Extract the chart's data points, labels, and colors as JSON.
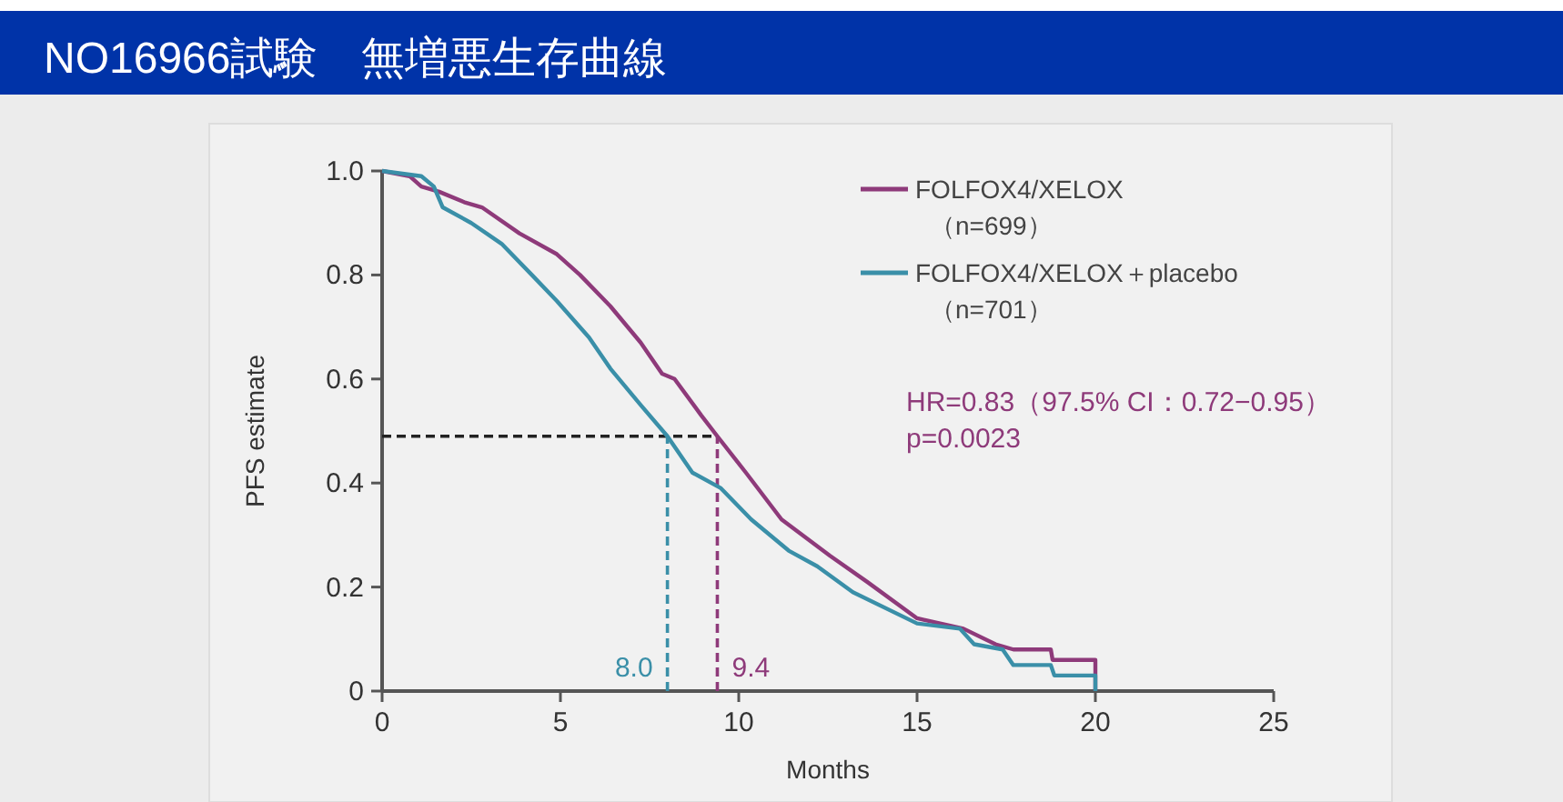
{
  "chart_data": {
    "type": "line",
    "title": "NO16966試験　無増悪生存曲線",
    "xlabel": "Months",
    "ylabel": "PFS estimate",
    "xlim": [
      0,
      25
    ],
    "xticks": [
      0,
      5,
      10,
      15,
      20,
      25
    ],
    "ylim": [
      0,
      1.0
    ],
    "yticks": [
      {
        "value": 0,
        "label": "0"
      },
      {
        "value": 0.2,
        "label": "0.2"
      },
      {
        "value": 0.4,
        "label": "0.4"
      },
      {
        "value": 0.6,
        "label": "0.6"
      },
      {
        "value": 0.8,
        "label": "0.8"
      },
      {
        "value": 1.0,
        "label": "1.0"
      }
    ],
    "legend": "top right",
    "line_style": "solid",
    "series": [
      {
        "name": "FOLFOX4/XELOX （n=699）",
        "color": "#8e3a7a",
        "x": [
          0,
          0.77,
          1.1,
          1.6,
          2.3,
          2.8,
          3.85,
          4.9,
          5.55,
          6.4,
          7.25,
          7.85,
          8.2,
          8.95,
          9.4,
          10.2,
          11.2,
          12.56,
          13.6,
          15,
          16.3,
          17.2,
          17.7,
          18.75,
          18.8,
          20,
          20
        ],
        "values": [
          1.0,
          0.99,
          0.97,
          0.96,
          0.94,
          0.93,
          0.88,
          0.84,
          0.8,
          0.74,
          0.67,
          0.61,
          0.6,
          0.53,
          0.49,
          0.42,
          0.33,
          0.26,
          0.21,
          0.14,
          0.12,
          0.09,
          0.08,
          0.08,
          0.06,
          0.06,
          0
        ]
      },
      {
        "name": "FOLFOX4/XELOX＋placebo （n=701）",
        "color": "#3a8fa8",
        "x": [
          0,
          1.1,
          1.45,
          1.7,
          2.5,
          3.35,
          4.2,
          4.9,
          5.8,
          6.4,
          7.25,
          8.0,
          8.7,
          9.5,
          10.35,
          11.4,
          12.2,
          13.2,
          15,
          16.2,
          16.6,
          17.4,
          17.7,
          18.75,
          18.85,
          20,
          20
        ],
        "values": [
          1.0,
          0.99,
          0.97,
          0.93,
          0.9,
          0.86,
          0.8,
          0.75,
          0.68,
          0.62,
          0.55,
          0.49,
          0.42,
          0.39,
          0.33,
          0.27,
          0.24,
          0.19,
          0.13,
          0.12,
          0.09,
          0.08,
          0.05,
          0.05,
          0.03,
          0.03,
          0
        ]
      }
    ],
    "ref_lines": [
      {
        "axis": "y",
        "value": 0.49,
        "label": null,
        "line_style": "dashed",
        "color": "#222222"
      },
      {
        "axis": "x",
        "value": 8.0,
        "label": "8.0",
        "line_style": "dashed",
        "color": "#3a8fa8"
      },
      {
        "axis": "x",
        "value": 9.4,
        "label": "9.4",
        "line_style": "dashed",
        "color": "#8e3a7a"
      }
    ],
    "annotations": [
      "HR=0.83（97.5% CI：0.72−0.95）",
      "p=0.0023"
    ]
  }
}
